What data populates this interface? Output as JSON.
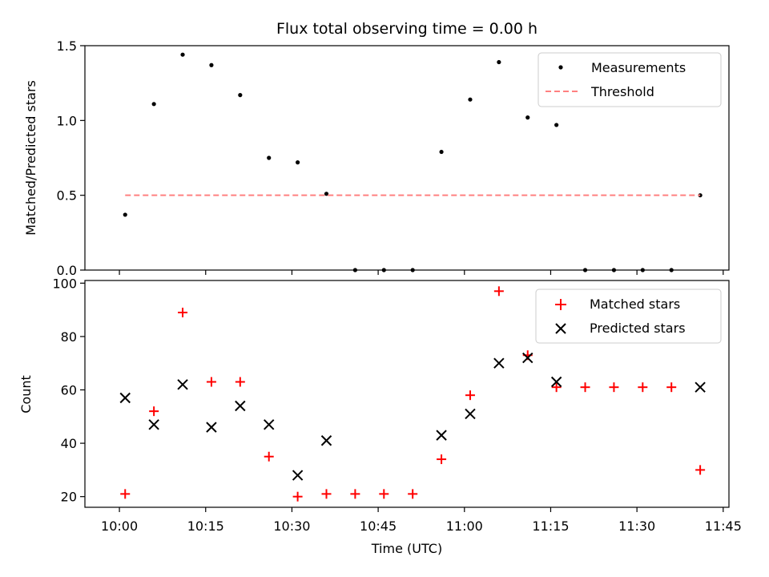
{
  "figure": {
    "title": "Flux total observing time = 0.00 h",
    "colors": {
      "threshold": "#ff8080",
      "matched": "#ff0000",
      "predicted": "#000000",
      "measurement": "#000000"
    }
  },
  "chart_data": [
    {
      "type": "scatter",
      "title": "Flux total observing time = 0.00 h",
      "ylabel": "Matched/Predicted stars",
      "xlabel": "",
      "xlim": [
        "09:54",
        "11:46"
      ],
      "ylim": [
        0,
        1.5
      ],
      "yticks": [
        0.0,
        0.5,
        1.0,
        1.5
      ],
      "ytick_labels": [
        "0.0",
        "0.5",
        "1.0",
        "1.5"
      ],
      "x_ticks": [
        "10:00",
        "10:15",
        "10:30",
        "10:45",
        "11:00",
        "11:15",
        "11:30",
        "11:45"
      ],
      "legend": {
        "placement": "top-right",
        "entries": [
          "Measurements",
          "Threshold"
        ]
      },
      "series": [
        {
          "name": "Measurements",
          "kind": "scatter-dot",
          "x": [
            "10:01",
            "10:06",
            "10:11",
            "10:16",
            "10:21",
            "10:26",
            "10:31",
            "10:36",
            "10:41",
            "10:46",
            "10:51",
            "10:56",
            "11:01",
            "11:06",
            "11:11",
            "11:16",
            "11:21",
            "11:26",
            "11:31",
            "11:36",
            "11:41"
          ],
          "values": [
            0.37,
            1.11,
            1.44,
            1.37,
            1.17,
            0.75,
            0.72,
            0.51,
            0.0,
            0.0,
            0.0,
            0.79,
            1.14,
            1.39,
            1.02,
            0.97,
            0.0,
            0.0,
            0.0,
            0.0,
            0.5
          ]
        },
        {
          "name": "Threshold",
          "kind": "dashed-line",
          "x": [
            "10:01",
            "11:41"
          ],
          "values": [
            0.5,
            0.5
          ]
        }
      ]
    },
    {
      "type": "scatter",
      "title": "",
      "ylabel": "Count",
      "xlabel": "Time (UTC)",
      "xlim": [
        "09:54",
        "11:46"
      ],
      "ylim": [
        16,
        101
      ],
      "yticks": [
        20,
        40,
        60,
        80,
        100
      ],
      "ytick_labels": [
        "20",
        "40",
        "60",
        "80",
        "100"
      ],
      "x_ticks": [
        "10:00",
        "10:15",
        "10:30",
        "10:45",
        "11:00",
        "11:15",
        "11:30",
        "11:45"
      ],
      "legend": {
        "placement": "top-right",
        "entries": [
          "Matched stars",
          "Predicted stars"
        ]
      },
      "series": [
        {
          "name": "Matched stars",
          "kind": "plus",
          "x": [
            "10:01",
            "10:06",
            "10:11",
            "10:16",
            "10:21",
            "10:26",
            "10:31",
            "10:36",
            "10:41",
            "10:46",
            "10:51",
            "10:56",
            "11:01",
            "11:06",
            "11:11",
            "11:16",
            "11:21",
            "11:26",
            "11:31",
            "11:36",
            "11:41"
          ],
          "values": [
            21,
            52,
            89,
            63,
            63,
            35,
            20,
            21,
            21,
            21,
            21,
            34,
            58,
            97,
            73,
            61,
            61,
            61,
            61,
            61,
            30
          ]
        },
        {
          "name": "Predicted stars",
          "kind": "x",
          "x": [
            "10:01",
            "10:06",
            "10:11",
            "10:16",
            "10:21",
            "10:26",
            "10:31",
            "10:36",
            "10:56",
            "11:01",
            "11:06",
            "11:11",
            "11:16",
            "11:41"
          ],
          "values": [
            57,
            47,
            62,
            46,
            54,
            47,
            28,
            41,
            43,
            51,
            70,
            72,
            63,
            61
          ]
        }
      ]
    }
  ]
}
